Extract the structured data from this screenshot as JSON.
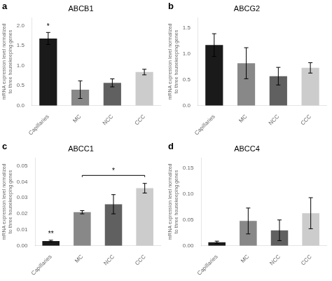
{
  "chart_data": [
    {
      "type": "bar",
      "panel_label": "a",
      "title": "ABCB1",
      "ylabel": "mRNA expression level normalized\nto three housekeeping genes",
      "categories": [
        "Capillaries",
        "MC",
        "NCC",
        "CCC"
      ],
      "values": [
        1.68,
        0.4,
        0.57,
        0.84
      ],
      "errors": [
        0.15,
        0.22,
        0.1,
        0.07
      ],
      "colors": [
        "#1a1a1a",
        "#888888",
        "#606060",
        "#cccccc"
      ],
      "ylim": [
        0,
        2.2
      ],
      "yticks": [
        {
          "value": 0.0,
          "label": "0.0"
        },
        0.5,
        {
          "value": 1.0,
          "label": "1.0"
        },
        1.5,
        {
          "value": 2.0,
          "label": "2.0"
        }
      ],
      "annotations": [
        {
          "category": "Capillaries",
          "text": "*"
        }
      ],
      "grid": false
    },
    {
      "type": "bar",
      "panel_label": "b",
      "title": "ABCG2",
      "ylabel": "mRNA expression level normalized\nto three housekeeping genes",
      "categories": [
        "Capillaries",
        "MC",
        "NCC",
        "CCC"
      ],
      "values": [
        1.17,
        0.82,
        0.57,
        0.73
      ],
      "errors": [
        0.22,
        0.3,
        0.17,
        0.1
      ],
      "colors": [
        "#1a1a1a",
        "#888888",
        "#606060",
        "#cccccc"
      ],
      "ylim": [
        0,
        1.7
      ],
      "yticks": [
        {
          "value": 0.0,
          "label": "0.0"
        },
        0.5,
        {
          "value": 1.0,
          "label": "1.0"
        },
        1.5
      ],
      "grid": false
    },
    {
      "type": "bar",
      "panel_label": "c",
      "title": "ABCC1",
      "ylabel": "mRNA expression level normalized\nto three housekeeping genes",
      "categories": [
        "Capillaries",
        "MC",
        "NCC",
        "CCC"
      ],
      "values": [
        0.003,
        0.021,
        0.026,
        0.036
      ],
      "errors": [
        0.0005,
        0.001,
        0.006,
        0.003
      ],
      "colors": [
        "#1a1a1a",
        "#888888",
        "#606060",
        "#cccccc"
      ],
      "ylim": [
        0,
        0.055
      ],
      "yticks": [
        {
          "value": 0.0,
          "label": "0.00"
        },
        0.01,
        0.02,
        0.03,
        0.04,
        0.05
      ],
      "annotations": [
        {
          "category": "Capillaries",
          "text": "**"
        }
      ],
      "bracket": {
        "from": "MC",
        "to": "CCC",
        "y": 0.044,
        "text": "*"
      },
      "grid": false
    },
    {
      "type": "bar",
      "panel_label": "d",
      "title": "ABCC4",
      "ylabel": "mRNA expression level normalized\nto three housekeeping genes",
      "categories": [
        "Capillaries",
        "MC",
        "NCC",
        "CCC"
      ],
      "values": [
        0.007,
        0.048,
        0.03,
        0.063
      ],
      "errors": [
        0.002,
        0.025,
        0.02,
        0.03
      ],
      "colors": [
        "#1a1a1a",
        "#888888",
        "#606060",
        "#cccccc"
      ],
      "ylim": [
        0,
        0.17
      ],
      "yticks": [
        {
          "value": 0.0,
          "label": "0.00"
        },
        0.05,
        {
          "value": 0.1,
          "label": "0.10"
        },
        0.15
      ],
      "grid": false
    }
  ]
}
